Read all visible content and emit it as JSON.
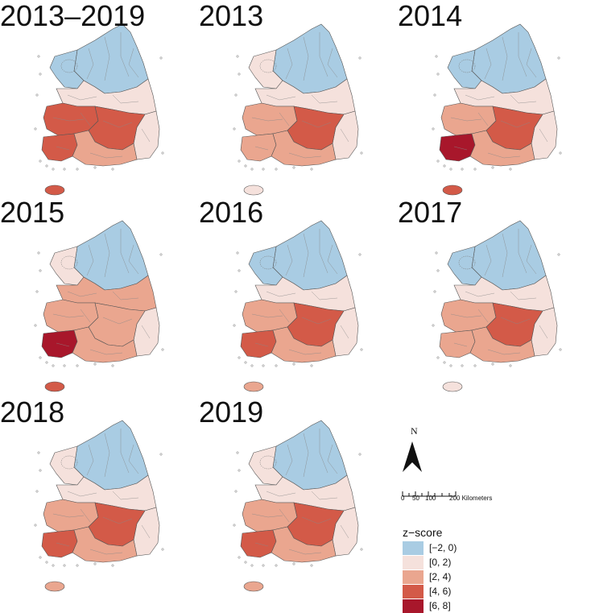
{
  "panels": [
    {
      "title": "2013–2019",
      "jeju_class": 3,
      "regions": {
        "north": 0,
        "nw": 0,
        "center": 1,
        "sw_mid": 3,
        "se_inner": 3,
        "sw_coast": 3,
        "south_coast": 2,
        "east": 1
      }
    },
    {
      "title": "2013",
      "jeju_class": 1,
      "regions": {
        "north": 0,
        "nw": 1,
        "center": 1,
        "sw_mid": 2,
        "se_inner": 3,
        "sw_coast": 2,
        "south_coast": 2,
        "east": 1
      }
    },
    {
      "title": "2014",
      "jeju_class": 3,
      "regions": {
        "north": 0,
        "nw": 0,
        "center": 1,
        "sw_mid": 2,
        "se_inner": 3,
        "sw_coast": 4,
        "south_coast": 2,
        "east": 1
      }
    },
    {
      "title": "2015",
      "jeju_class": 3,
      "regions": {
        "north": 0,
        "nw": 1,
        "center": 2,
        "sw_mid": 2,
        "se_inner": 2,
        "sw_coast": 4,
        "south_coast": 2,
        "east": 1
      }
    },
    {
      "title": "2016",
      "jeju_class": 2,
      "regions": {
        "north": 0,
        "nw": 0,
        "center": 1,
        "sw_mid": 2,
        "se_inner": 3,
        "sw_coast": 3,
        "south_coast": 2,
        "east": 1
      }
    },
    {
      "title": "2017",
      "jeju_class": 1,
      "regions": {
        "north": 0,
        "nw": 0,
        "center": 1,
        "sw_mid": 2,
        "se_inner": 3,
        "sw_coast": 2,
        "south_coast": 2,
        "east": 1
      }
    },
    {
      "title": "2018",
      "jeju_class": 2,
      "regions": {
        "north": 0,
        "nw": 1,
        "center": 1,
        "sw_mid": 2,
        "se_inner": 3,
        "sw_coast": 3,
        "south_coast": 2,
        "east": 1
      }
    },
    {
      "title": "2019",
      "jeju_class": 2,
      "regions": {
        "north": 0,
        "nw": 1,
        "center": 1,
        "sw_mid": 2,
        "se_inner": 3,
        "sw_coast": 3,
        "south_coast": 2,
        "east": 1
      }
    }
  ],
  "north_arrow": {
    "label": "N"
  },
  "scale_bar": {
    "ticks": [
      "0",
      "50",
      "100",
      "200 Kilometers"
    ]
  },
  "legend": {
    "title": "z−score",
    "classes": [
      {
        "label": "[−2, 0)",
        "color": "#a9cce3"
      },
      {
        "label": "[0, 2)",
        "color": "#f5e1dc"
      },
      {
        "label": "[2, 4)",
        "color": "#eaa68f"
      },
      {
        "label": "[4, 6)",
        "color": "#d35a48"
      },
      {
        "label": "[6, 8]",
        "color": "#a8172b"
      }
    ],
    "none_color": "#ffffff"
  }
}
